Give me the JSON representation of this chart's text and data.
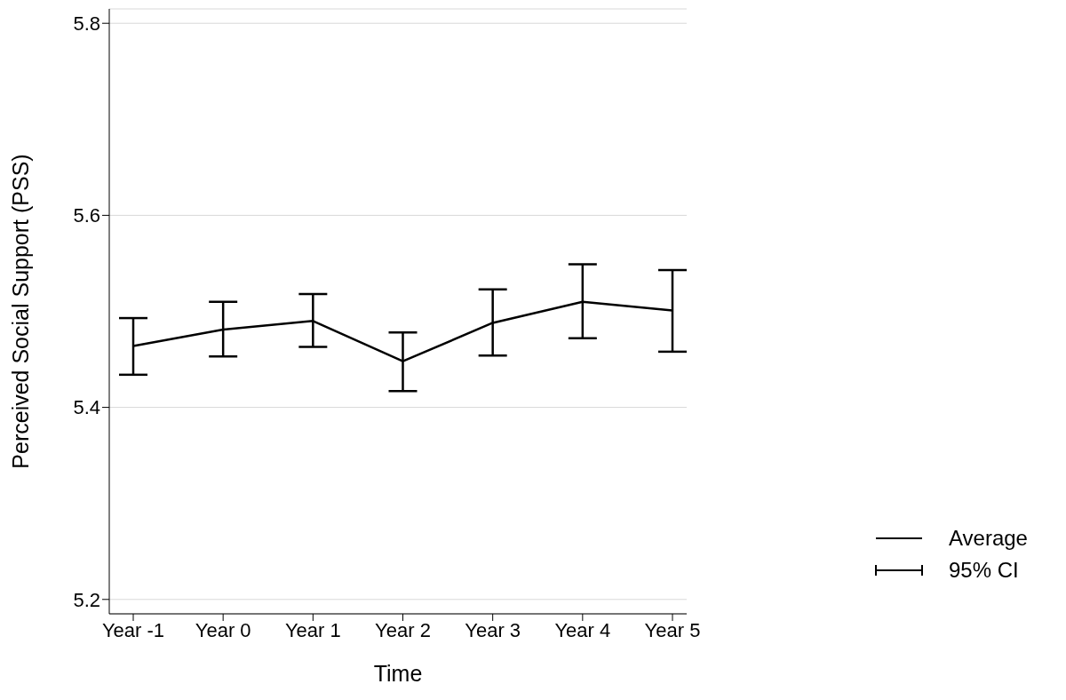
{
  "chart_data": {
    "type": "line",
    "xlabel": "Time",
    "ylabel": "Perceived Social Support (PSS)",
    "categories": [
      "Year -1",
      "Year 0",
      "Year 1",
      "Year 2",
      "Year 3",
      "Year 4",
      "Year 5"
    ],
    "series": [
      {
        "name": "Average",
        "color": "#000000",
        "values": [
          5.464,
          5.481,
          5.49,
          5.448,
          5.488,
          5.51,
          5.501
        ],
        "errors": [
          [
            5.434,
            5.493
          ],
          [
            5.453,
            5.51
          ],
          [
            5.463,
            5.518
          ],
          [
            5.417,
            5.478
          ],
          [
            5.454,
            5.523
          ],
          [
            5.472,
            5.549
          ],
          [
            5.458,
            5.543
          ]
        ]
      }
    ],
    "annotations": [
      "95% CI"
    ],
    "ylim": [
      5.185,
      5.815
    ],
    "yticks": [
      5.2,
      5.4,
      5.6,
      5.8
    ],
    "grid": "y",
    "legend": "bottom right",
    "marker": "none",
    "line_style": "solid"
  }
}
